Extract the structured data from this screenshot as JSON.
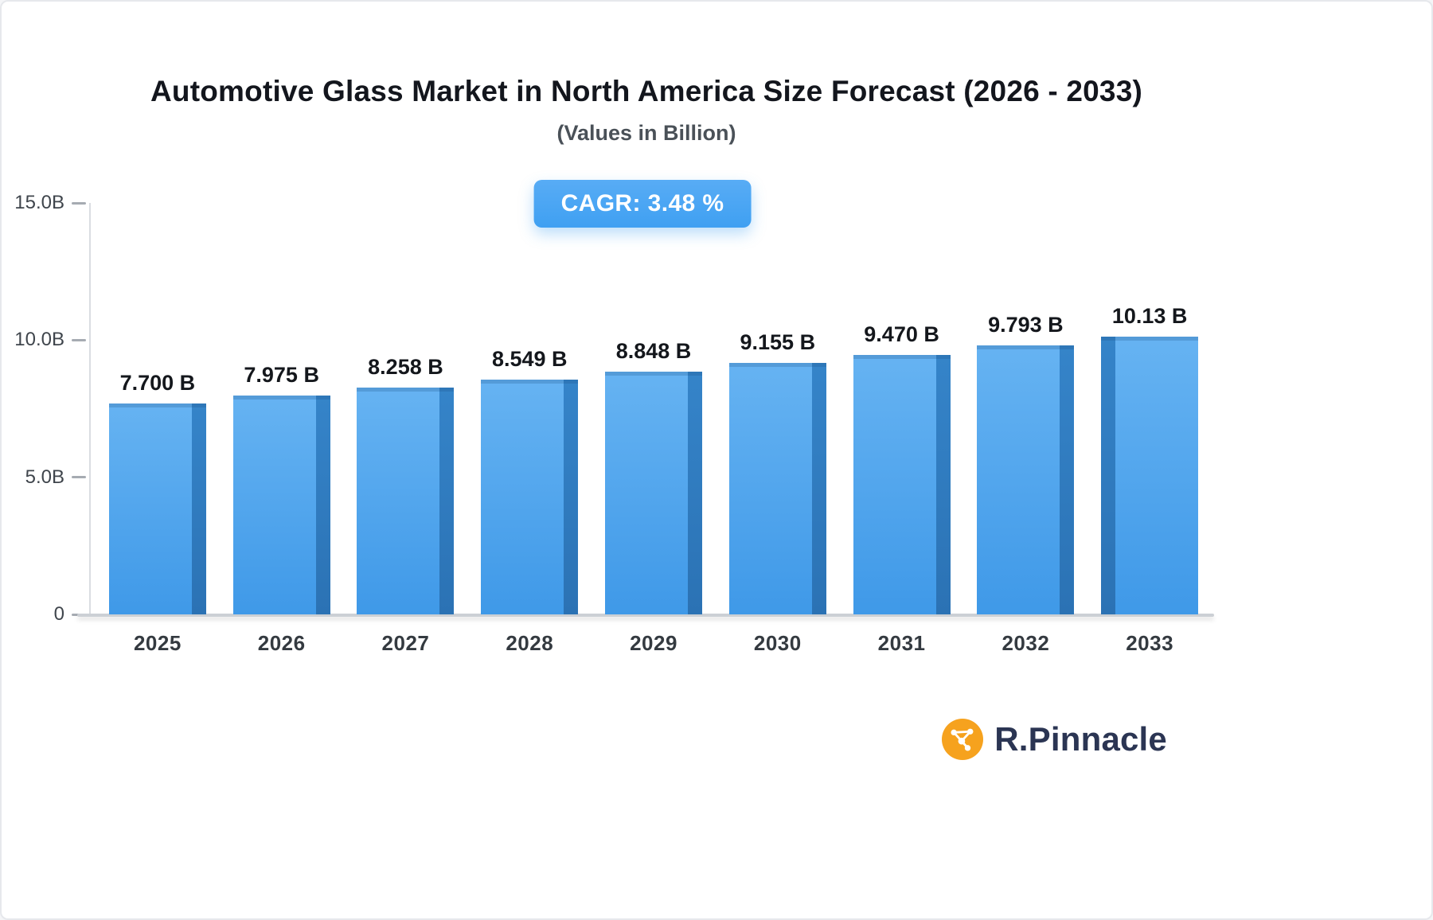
{
  "header": {
    "title": "Automotive Glass Market in North America Size Forecast (2026 - 2033)",
    "subtitle": "(Values in Billion)"
  },
  "badge": {
    "label": "CAGR: 3.48 %"
  },
  "branding": {
    "name": "R.Pinnacle",
    "icon": "network-icon",
    "icon_color": "#F6A21E",
    "text_color": "#2B3553"
  },
  "colors": {
    "accent": "#3FA0F2",
    "accent_light": "#58ACF5",
    "bar_front_top": "#66B3F2",
    "bar_front_bottom": "#3F99E8",
    "bar_side": "#3584C9",
    "bar_side_dark": "#2B72B4"
  },
  "chart_data": {
    "type": "bar",
    "title": "Automotive Glass Market in North America Size Forecast (2026 - 2033)",
    "subtitle": "(Values in Billion)",
    "cagr": "CAGR: 3.48 %",
    "categories": [
      "2025",
      "2026",
      "2027",
      "2028",
      "2029",
      "2030",
      "2031",
      "2032",
      "2033"
    ],
    "values": [
      7.7,
      7.975,
      8.258,
      8.549,
      8.848,
      9.155,
      9.47,
      9.793,
      10.13
    ],
    "value_labels": [
      "7.700 B",
      "7.975 B",
      "8.258 B",
      "8.549 B",
      "8.848 B",
      "9.155 B",
      "9.470 B",
      "9.793 B",
      "10.13 B"
    ],
    "xlabel": "",
    "ylabel": "",
    "ylim": [
      0,
      15
    ],
    "yticks": [
      {
        "label": "0",
        "value": 0
      },
      {
        "label": "5.0B",
        "value": 5
      },
      {
        "label": "10.0B",
        "value": 10
      },
      {
        "label": "15.0B",
        "value": 15
      }
    ],
    "grid": false,
    "legend": "none"
  }
}
